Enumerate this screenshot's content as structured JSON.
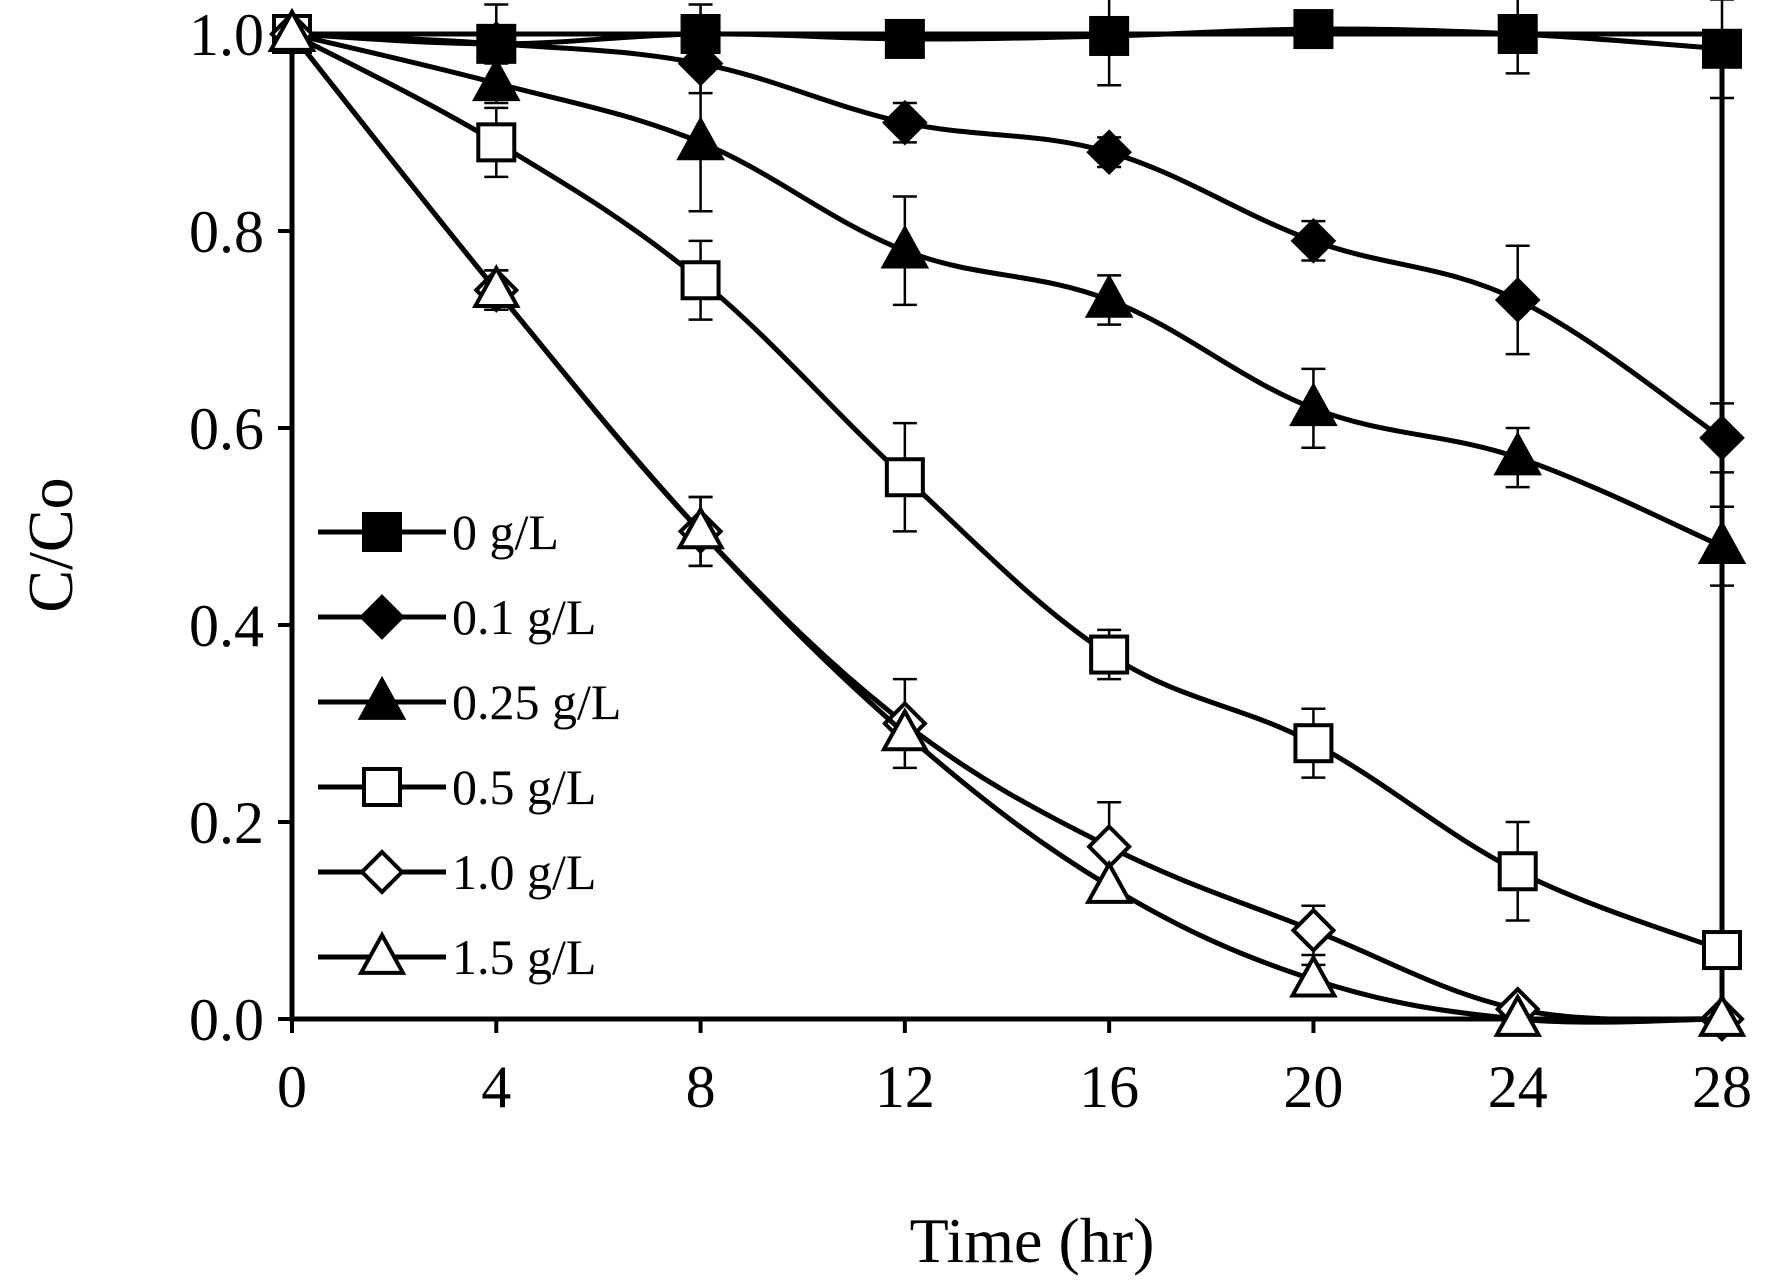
{
  "chart_data": {
    "type": "line",
    "title": "",
    "xlabel": "Time (hr)",
    "ylabel": "C/Co",
    "xlim": [
      0,
      28
    ],
    "ylim": [
      0,
      1.0
    ],
    "x_ticks": [
      0,
      4,
      8,
      12,
      16,
      20,
      24,
      28
    ],
    "x_tick_labels": [
      "0",
      "4",
      "8",
      "12",
      "16",
      "20",
      "24",
      "28"
    ],
    "y_ticks": [
      0,
      0.2,
      0.4,
      0.6,
      0.8,
      1.0
    ],
    "y_tick_labels": [
      "0.0",
      "0.2",
      "0.4",
      "0.6",
      "0.8",
      "1.0"
    ],
    "grid": false,
    "legend_position": "middle-left",
    "x": [
      0,
      4,
      8,
      12,
      16,
      20,
      24,
      28
    ],
    "series": [
      {
        "name": "0 g/L",
        "marker": "square",
        "filled": true,
        "values": [
          1.0,
          0.99,
          1.0,
          0.995,
          0.998,
          1.005,
          1.0,
          0.985
        ],
        "errors": [
          0.0,
          0.04,
          0.03,
          0.0,
          0.05,
          0.0,
          0.04,
          0.05
        ]
      },
      {
        "name": "0.1 g/L",
        "marker": "diamond",
        "filled": true,
        "values": [
          1.0,
          0.99,
          0.97,
          0.91,
          0.88,
          0.79,
          0.73,
          0.59
        ],
        "errors": [
          0.0,
          0.0,
          0.03,
          0.02,
          0.015,
          0.02,
          0.055,
          0.035
        ]
      },
      {
        "name": "0.25 g/L",
        "marker": "triangle",
        "filled": true,
        "values": [
          1.0,
          0.95,
          0.89,
          0.78,
          0.73,
          0.62,
          0.57,
          0.48
        ],
        "errors": [
          0.0,
          0.02,
          0.07,
          0.055,
          0.025,
          0.04,
          0.03,
          0.04
        ]
      },
      {
        "name": "0.5 g/L",
        "marker": "square",
        "filled": false,
        "values": [
          1.0,
          0.89,
          0.75,
          0.55,
          0.37,
          0.28,
          0.15,
          0.07
        ],
        "errors": [
          0.0,
          0.035,
          0.04,
          0.055,
          0.025,
          0.035,
          0.05,
          0.0
        ]
      },
      {
        "name": "1.0 g/L",
        "marker": "diamond",
        "filled": false,
        "values": [
          1.0,
          0.74,
          0.495,
          0.3,
          0.175,
          0.09,
          0.01,
          0.0
        ],
        "errors": [
          0.0,
          0.02,
          0.035,
          0.045,
          0.045,
          0.025,
          0.0,
          0.0
        ]
      },
      {
        "name": "1.5 g/L",
        "marker": "triangle",
        "filled": false,
        "values": [
          1.0,
          0.74,
          0.495,
          0.29,
          0.135,
          0.04,
          0.0,
          0.0
        ],
        "errors": [
          0.0,
          0.02,
          0.035,
          0.0,
          0.0,
          0.015,
          0.0,
          0.0
        ]
      }
    ]
  }
}
